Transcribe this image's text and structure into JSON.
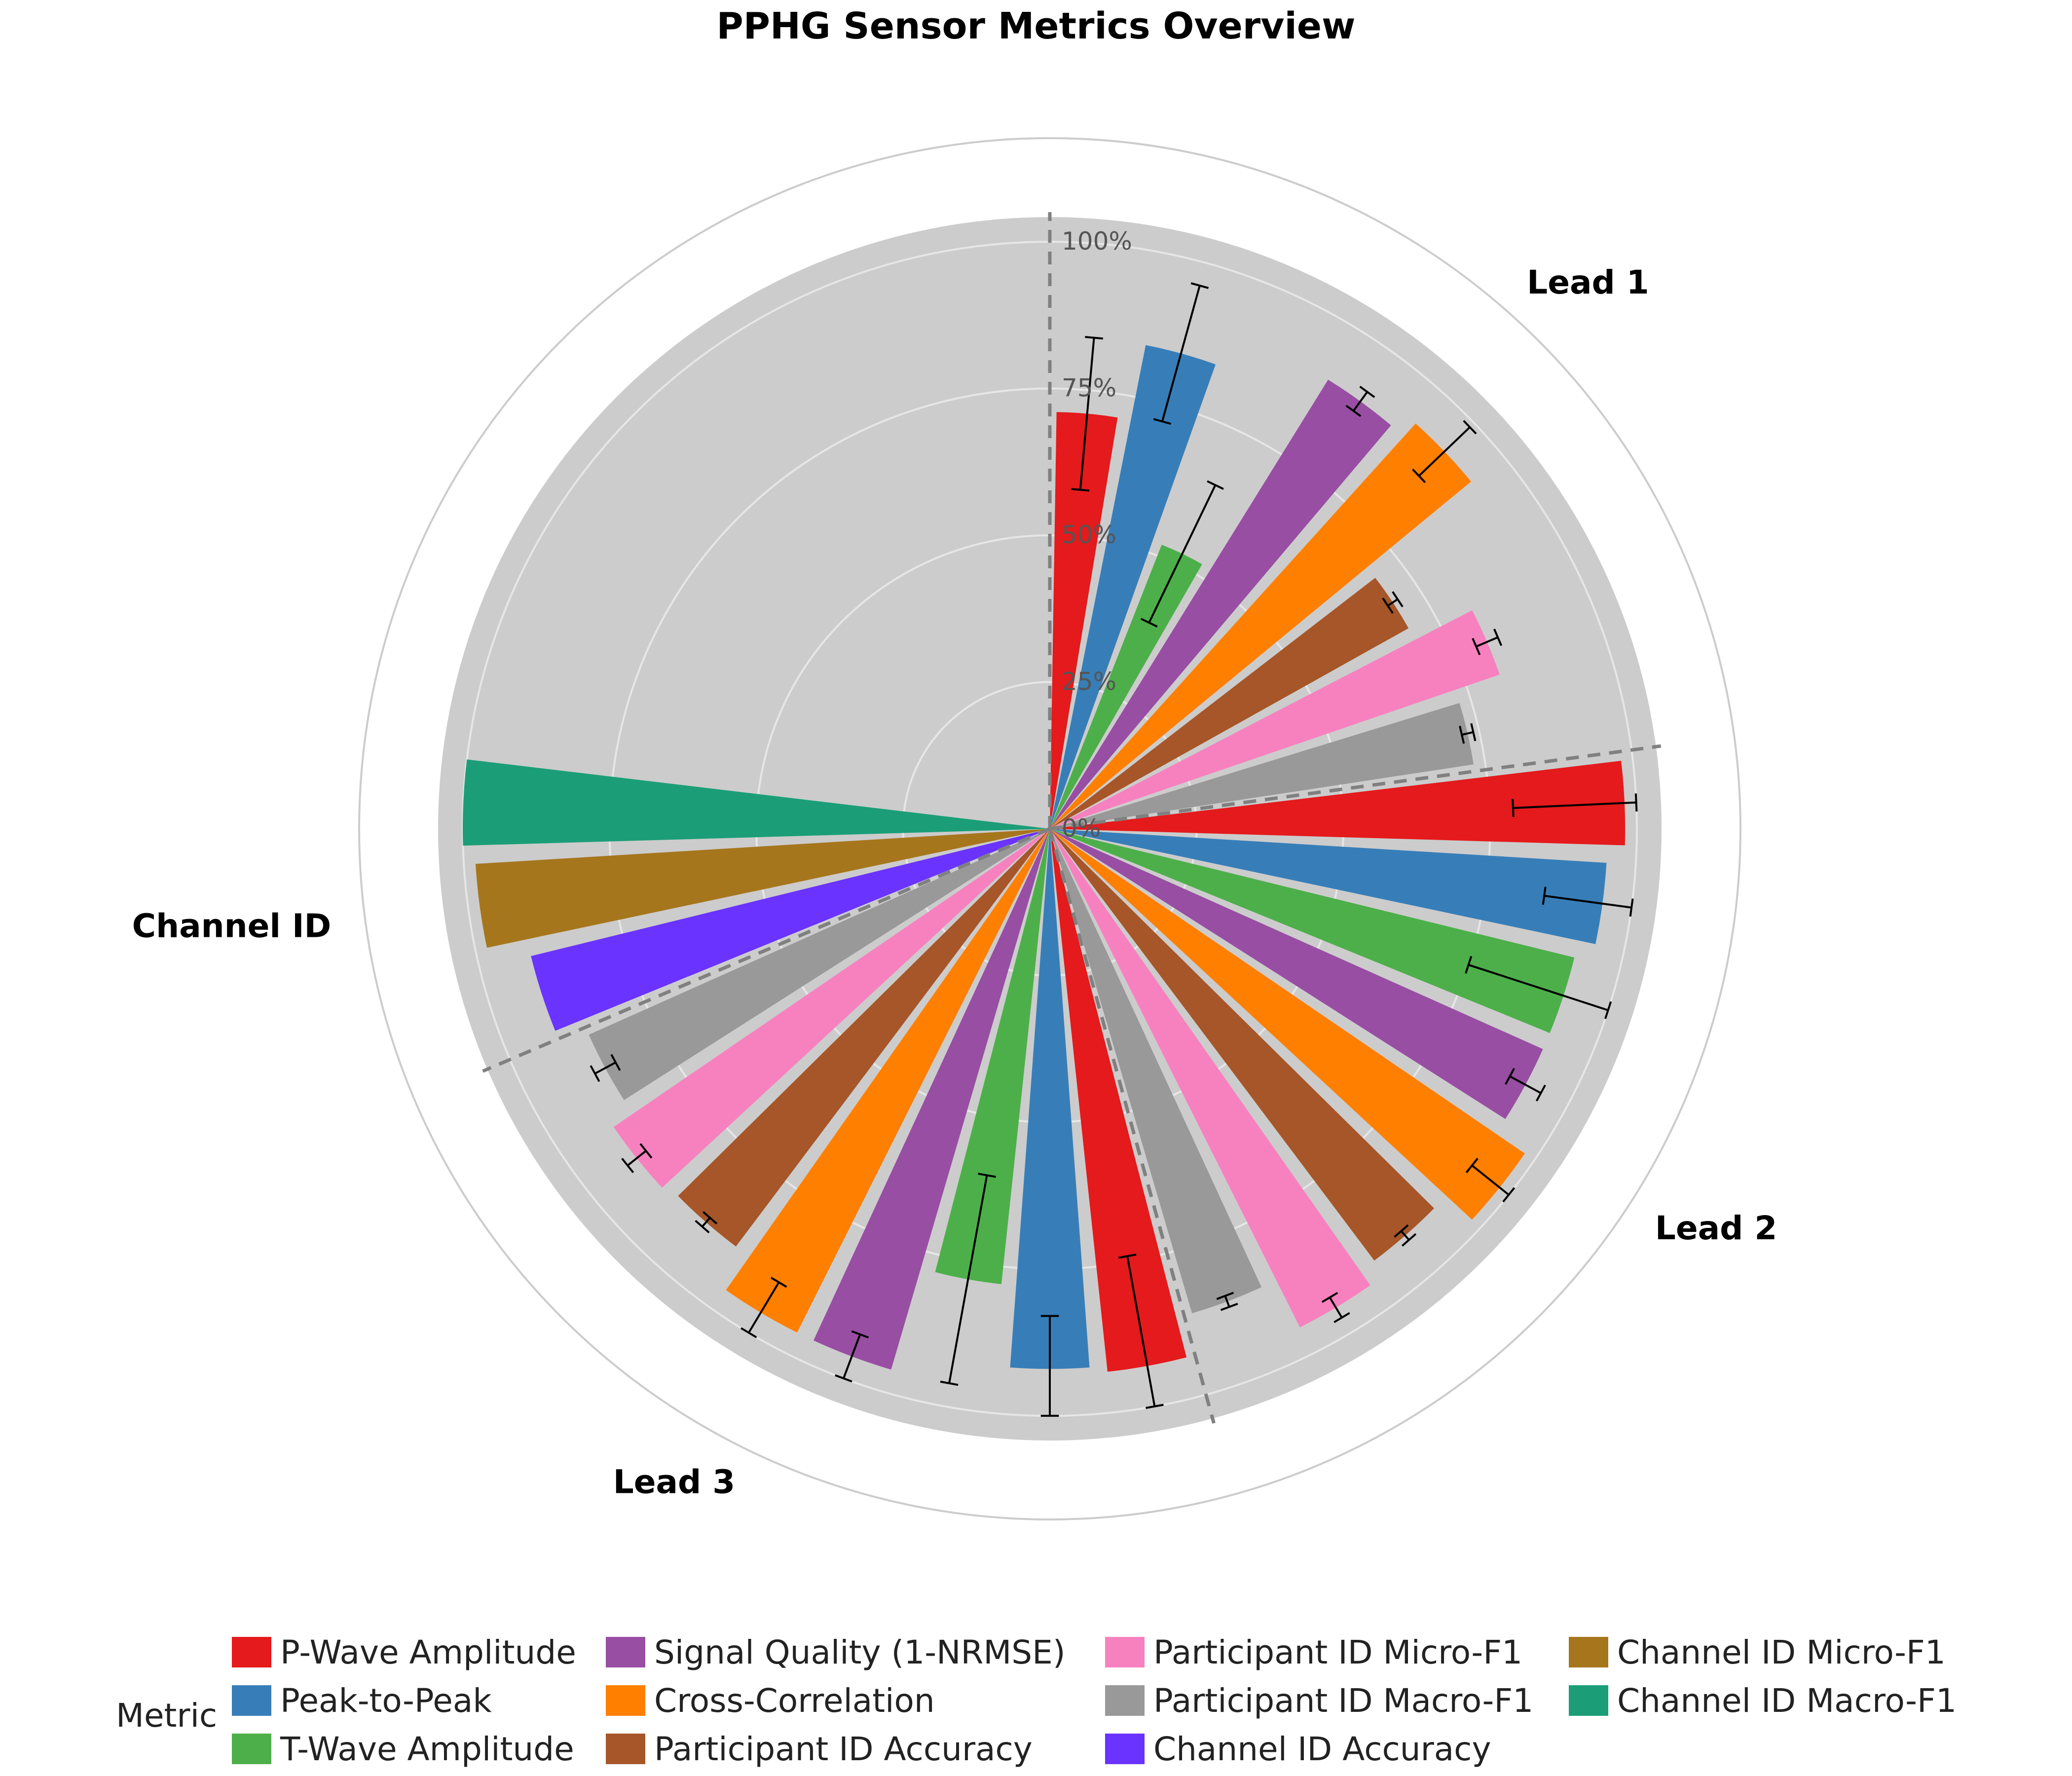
{
  "chart_data": {
    "type": "polar-bar",
    "title": "PPHG Sensor Metrics Overview",
    "radial_axis": {
      "range": [
        0,
        100
      ],
      "ticks": [
        0,
        25,
        50,
        75,
        100
      ],
      "tick_labels": [
        "0%",
        "25%",
        "50%",
        "75%",
        "100%"
      ]
    },
    "legend": {
      "title": "Metric",
      "placement": "bottom"
    },
    "metrics": [
      {
        "name": "P-Wave Amplitude",
        "color": "#e41a1c"
      },
      {
        "name": "Peak-to-Peak",
        "color": "#377eb8"
      },
      {
        "name": "T-Wave Amplitude",
        "color": "#4daf4a"
      },
      {
        "name": "Signal Quality (1-NRMSE)",
        "color": "#984ea3"
      },
      {
        "name": "Cross-Correlation",
        "color": "#ff7f00"
      },
      {
        "name": "Participant ID Accuracy",
        "color": "#a65628"
      },
      {
        "name": "Participant ID Micro-F1",
        "color": "#f781bf"
      },
      {
        "name": "Participant ID Macro-F1",
        "color": "#999999"
      },
      {
        "name": "Channel ID Accuracy",
        "color": "#6a33ff"
      },
      {
        "name": "Channel ID Micro-F1",
        "color": "#a6761d"
      },
      {
        "name": "Channel ID Macro-F1",
        "color": "#1b9e77"
      }
    ],
    "groups": [
      {
        "name": "Lead 1",
        "values": [
          71,
          84,
          52,
          90,
          93,
          70,
          81,
          73
        ],
        "errors": [
          13,
          12,
          13,
          2,
          6,
          1,
          2,
          1
        ]
      },
      {
        "name": "Lead 2",
        "values": [
          98,
          95,
          92,
          92,
          98,
          92,
          95,
          86
        ],
        "errors": [
          19,
          10,
          17,
          3,
          6,
          1,
          2,
          1
        ]
      },
      {
        "name": "Lead 3",
        "values": [
          93,
          92,
          78,
          96,
          96,
          89,
          90,
          86
        ],
        "errors": [
          19,
          9,
          18,
          4,
          6,
          1,
          2,
          2
        ]
      },
      {
        "name": "Channel ID",
        "values": [
          91,
          98,
          100
        ],
        "errors": []
      }
    ]
  }
}
